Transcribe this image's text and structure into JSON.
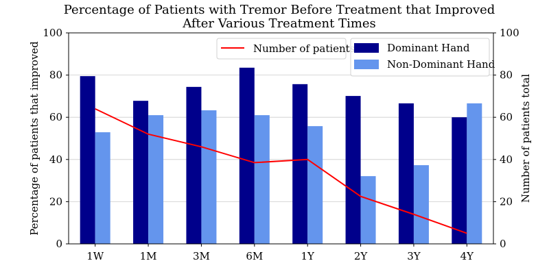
{
  "chart_data": {
    "type": "bar",
    "title_line1": "Percentage of Patients with Tremor Before Treatment that Improved",
    "title_line2": "After Various Treatment Times",
    "ylabel": "Percentage of patients that improved",
    "y2label": "Number of patients total",
    "ylim": [
      0,
      100
    ],
    "y2lim": [
      0,
      100
    ],
    "yticks": [
      0,
      20,
      40,
      60,
      80,
      100
    ],
    "y2ticks": [
      0,
      20,
      40,
      60,
      80,
      100
    ],
    "grid": "horizontal",
    "categories": [
      "1W",
      "1M",
      "3M",
      "6M",
      "1Y",
      "2Y",
      "3Y",
      "4Y"
    ],
    "series": [
      {
        "name": "Dominant Hand",
        "type": "bar",
        "axis": "left",
        "color": "#00008b",
        "values": [
          79.5,
          67.8,
          74.4,
          83.5,
          75.7,
          70.1,
          66.6,
          60.0
        ]
      },
      {
        "name": "Non-Dominant Hand",
        "type": "bar",
        "axis": "left",
        "color": "#6495ed",
        "values": [
          52.9,
          61.0,
          63.3,
          61.0,
          55.8,
          32.1,
          37.3,
          66.6
        ]
      },
      {
        "name": "Number of patients",
        "type": "line",
        "axis": "right",
        "color": "#ff0000",
        "values": [
          64,
          52,
          46,
          38.5,
          40,
          22.5,
          14,
          5
        ]
      }
    ],
    "legend": {
      "line_position": "top-center",
      "bar_position": "top-right"
    }
  }
}
